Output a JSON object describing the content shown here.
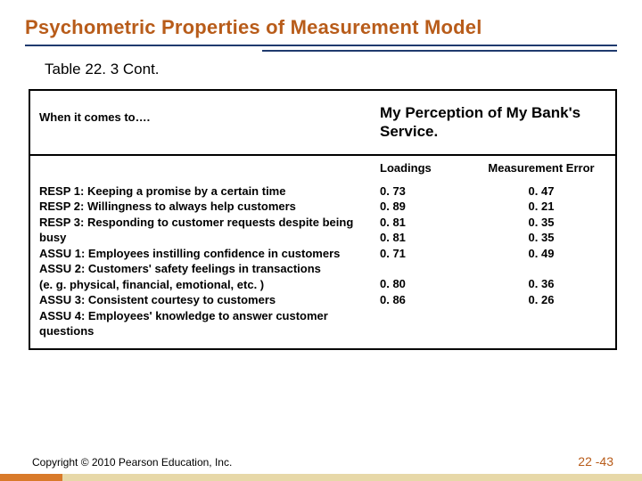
{
  "title": "Psychometric Properties of Measurement Model",
  "subtitle": "Table 22. 3 Cont.",
  "table": {
    "head_left": "When it comes to….",
    "head_right": "My Perception of My Bank's Service.",
    "col_loadings": "Loadings",
    "col_error": "Measurement Error",
    "rows": [
      {
        "label": "RESP 1: Keeping a promise by a certain time",
        "loading": "0. 73",
        "error": "0. 47"
      },
      {
        "label": "RESP 2: Willingness to always help customers",
        "loading": "0. 89",
        "error": "0. 21"
      },
      {
        "label": "RESP 3: Responding to customer requests despite being busy",
        "loading": "0. 81",
        "error": "0. 35"
      },
      {
        "label": "ASSU 1: Employees instilling confidence in customers",
        "loading": "0. 81",
        "error": "0. 35"
      },
      {
        "label": "ASSU 2: Customers' safety feelings in transactions",
        "loading": "0. 71",
        "error": "0. 49"
      }
    ],
    "extra_label": "(e. g. physical, financial, emotional, etc. )",
    "rows2": [
      {
        "label": "ASSU 3: Consistent courtesy to customers",
        "loading": "0. 80",
        "error": "0. 36"
      },
      {
        "label": "ASSU 4: Employees' knowledge to answer customer questions",
        "loading": "0. 86",
        "error": "0. 26"
      }
    ]
  },
  "footer": {
    "copyright": "Copyright © 2010 Pearson Education, Inc.",
    "page": "22 -43"
  },
  "colors": {
    "title": "#b85c1a",
    "rule": "#1f3a6e",
    "bottom_orange": "#d97a2a",
    "bottom_tan": "#e7d8a8"
  }
}
